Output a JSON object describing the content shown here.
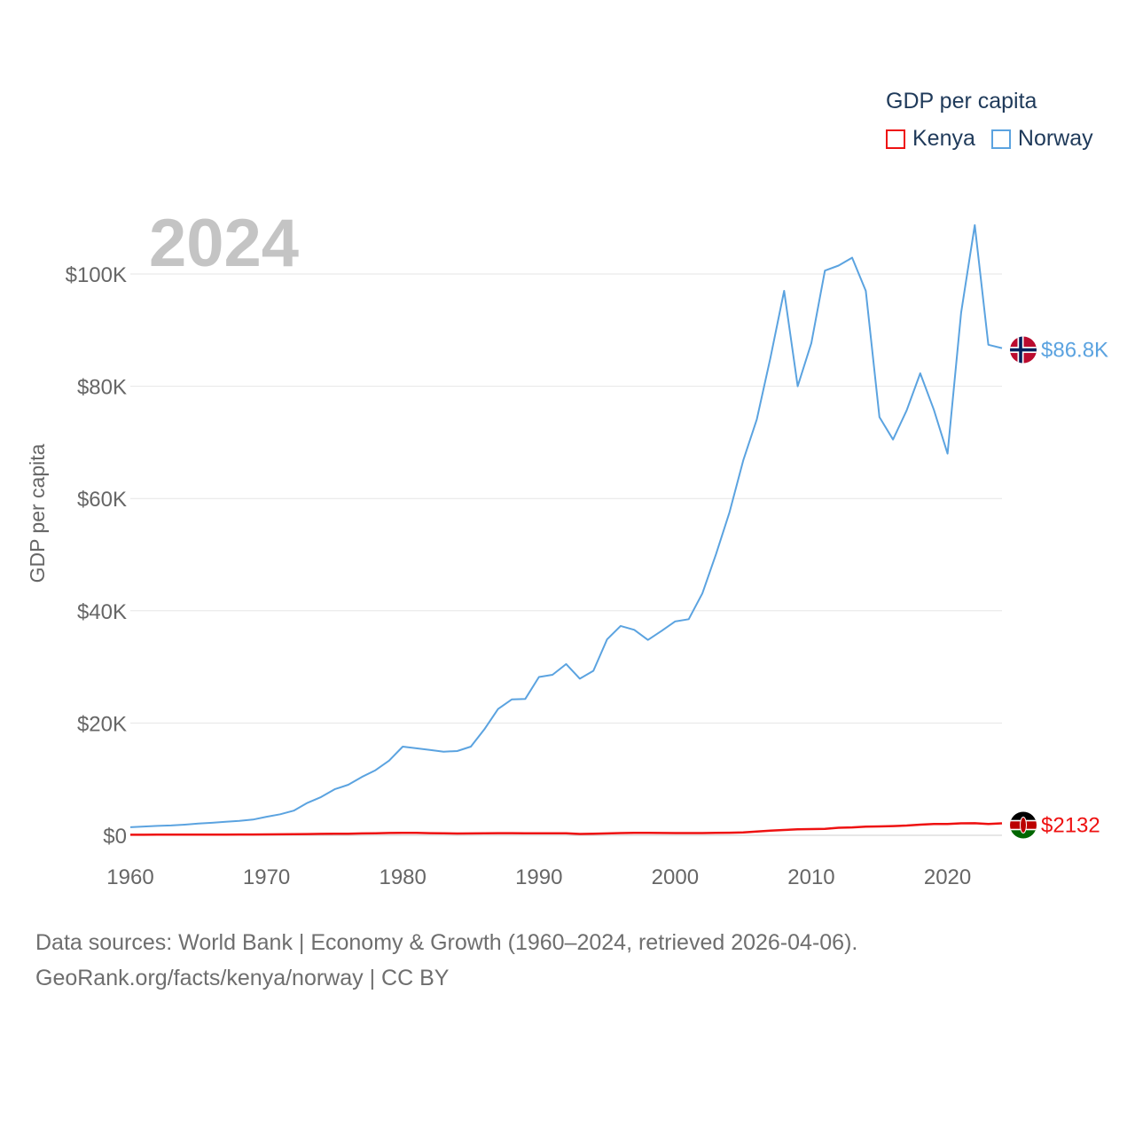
{
  "legend": {
    "title": "GDP per capita",
    "items": [
      {
        "label": "Kenya",
        "color": "#ee1111"
      },
      {
        "label": "Norway",
        "color": "#5ba3e0"
      }
    ]
  },
  "watermark_year": "2024",
  "footer": {
    "line1": "Data sources: World Bank | Economy & Growth (1960–2024, retrieved 2026-04-06).",
    "line2": "GeoRank.org/facts/kenya/norway | CC BY"
  },
  "chart_data": {
    "type": "line",
    "title": "GDP per capita",
    "xlabel": "",
    "ylabel": "GDP per capita",
    "xlim": [
      1960,
      2024
    ],
    "ylim": [
      0,
      110000
    ],
    "x_ticks": [
      1960,
      1970,
      1980,
      1990,
      2000,
      2010,
      2020
    ],
    "x_tick_labels": [
      "1960",
      "1970",
      "1980",
      "1990",
      "2000",
      "2010",
      "2020"
    ],
    "y_ticks": [
      0,
      20000,
      40000,
      60000,
      80000,
      100000
    ],
    "y_tick_labels": [
      "$0",
      "$20K",
      "$40K",
      "$60K",
      "$80K",
      "$100K"
    ],
    "grid": true,
    "x": [
      1960,
      1961,
      1962,
      1963,
      1964,
      1965,
      1966,
      1967,
      1968,
      1969,
      1970,
      1971,
      1972,
      1973,
      1974,
      1975,
      1976,
      1977,
      1978,
      1979,
      1980,
      1981,
      1982,
      1983,
      1984,
      1985,
      1986,
      1987,
      1988,
      1989,
      1990,
      1991,
      1992,
      1993,
      1994,
      1995,
      1996,
      1997,
      1998,
      1999,
      2000,
      2001,
      2002,
      2003,
      2004,
      2005,
      2006,
      2007,
      2008,
      2009,
      2010,
      2011,
      2012,
      2013,
      2014,
      2015,
      2016,
      2017,
      2018,
      2019,
      2020,
      2021,
      2022,
      2023,
      2024
    ],
    "series": [
      {
        "name": "Kenya",
        "color": "#ee1111",
        "end_label": "$2132",
        "values": [
          98,
          100,
          103,
          105,
          110,
          112,
          125,
          130,
          140,
          150,
          160,
          170,
          190,
          220,
          250,
          270,
          280,
          330,
          370,
          410,
          440,
          420,
          380,
          340,
          320,
          330,
          360,
          380,
          380,
          370,
          370,
          350,
          340,
          230,
          270,
          330,
          390,
          430,
          440,
          410,
          400,
          390,
          390,
          430,
          460,
          520,
          680,
          840,
          940,
          1080,
          1110,
          1140,
          1340,
          1410,
          1540,
          1580,
          1640,
          1740,
          1890,
          2020,
          2010,
          2130,
          2150,
          2000,
          2132
        ]
      },
      {
        "name": "Norway",
        "color": "#5ba3e0",
        "end_label": "$86.8K",
        "values": [
          1440,
          1560,
          1670,
          1760,
          1900,
          2080,
          2230,
          2400,
          2560,
          2800,
          3300,
          3750,
          4390,
          5780,
          6810,
          8200,
          9000,
          10400,
          11600,
          13300,
          15800,
          15500,
          15200,
          14900,
          15000,
          15800,
          18900,
          22500,
          24200,
          24300,
          28200,
          28600,
          30500,
          27900,
          29300,
          34900,
          37300,
          36600,
          34800,
          36400,
          38100,
          38500,
          43100,
          50100,
          57600,
          66800,
          74100,
          85100,
          97000,
          80000,
          87700,
          100600,
          101500,
          102900,
          97000,
          74500,
          70500,
          75700,
          82300,
          75800,
          68000,
          93100,
          108700,
          87400,
          86800
        ]
      }
    ]
  }
}
